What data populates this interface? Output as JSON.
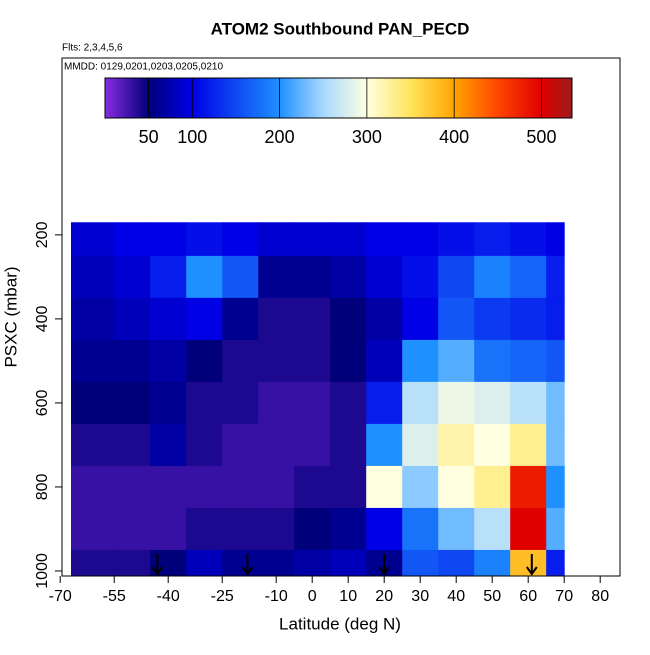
{
  "chart_data": {
    "type": "heatmap",
    "title": "ATOM2 Southbound PAN_PECD",
    "note_flights": "Flts: 2,3,4,5,6",
    "note_dates": "MMDD: 0129,0201,0203,0205,0210",
    "x_label": "Latitude (deg N)",
    "y_label": "PSXC (mbar)",
    "xlim": [
      -69.5,
      85.5
    ],
    "xticks": [
      -70,
      -55,
      -40,
      -25,
      -10,
      0,
      10,
      20,
      30,
      40,
      50,
      60,
      70,
      80
    ],
    "ylim": [
      1012,
      -221
    ],
    "yticks": [
      200,
      400,
      600,
      800,
      1000
    ],
    "x_edges": [
      -67,
      -55,
      -45,
      -35,
      -25,
      -15,
      -5,
      5,
      15,
      25,
      35,
      45,
      55,
      65,
      70
    ],
    "y_edges": [
      170,
      250,
      350,
      450,
      550,
      650,
      750,
      850,
      950,
      1012
    ],
    "values": [
      [
        90,
        100,
        100,
        110,
        100,
        90,
        90,
        90,
        100,
        100,
        110,
        120,
        110,
        100
      ],
      [
        80,
        90,
        120,
        200,
        160,
        60,
        60,
        70,
        90,
        110,
        150,
        190,
        170,
        120
      ],
      [
        70,
        80,
        90,
        100,
        60,
        40,
        40,
        50,
        70,
        100,
        160,
        140,
        130,
        120
      ],
      [
        60,
        60,
        70,
        50,
        40,
        40,
        40,
        50,
        80,
        200,
        220,
        180,
        170,
        160
      ],
      [
        50,
        50,
        60,
        40,
        40,
        30,
        30,
        40,
        120,
        260,
        290,
        280,
        260,
        230
      ],
      [
        40,
        40,
        70,
        40,
        30,
        30,
        30,
        40,
        200,
        280,
        320,
        300,
        330,
        230
      ],
      [
        30,
        30,
        30,
        30,
        30,
        30,
        40,
        40,
        300,
        240,
        300,
        330,
        480,
        200
      ],
      [
        30,
        30,
        30,
        40,
        40,
        40,
        50,
        60,
        100,
        180,
        230,
        260,
        500,
        220
      ],
      [
        40,
        40,
        50,
        80,
        60,
        60,
        70,
        80,
        60,
        160,
        150,
        190,
        380,
        120
      ]
    ],
    "clim": [
      0,
      535
    ],
    "cticks": [
      50,
      100,
      200,
      300,
      400,
      500
    ],
    "colormap": [
      [
        0,
        "#8a2be2"
      ],
      [
        50,
        "#00007a"
      ],
      [
        100,
        "#0000e6"
      ],
      [
        200,
        "#1e90ff"
      ],
      [
        250,
        "#a8d8ff"
      ],
      [
        300,
        "#ffffe0"
      ],
      [
        350,
        "#ffe45c"
      ],
      [
        400,
        "#ffa500"
      ],
      [
        450,
        "#ff4500"
      ],
      [
        500,
        "#e00000"
      ],
      [
        535,
        "#9b1c1c"
      ]
    ],
    "markers": [
      -43,
      -18,
      20,
      61
    ]
  }
}
